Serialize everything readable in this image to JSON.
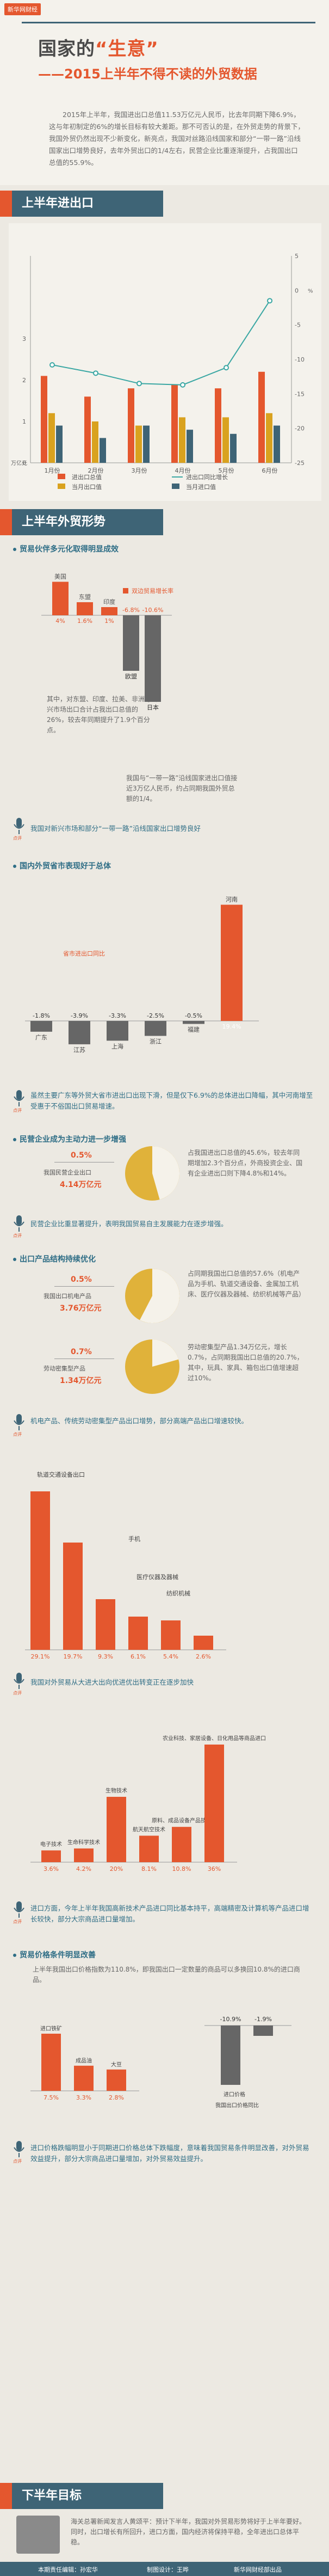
{
  "header": {
    "tag": "新华网财经",
    "title_a": "国家的",
    "title_b": "“生意”",
    "subtitle": "——2015上半年不得不读的外贸数据",
    "intro": "2015年上半年，我国进出口总值11.53万亿元人民币，比去年同期下降6.9%，这与年初制定的6%的增长目标有较大差距。那不可否认的是，在外贸走势的背景下，我国外贸仍然出现不少新变化，新亮点，我国对丝路沿线国家和部分“一带一路”沿线国家出口增势良好，去年外贸出口的1/4左右，民营企业比重逐渐提升，占我国出口总值的55.9%。"
  },
  "colors": {
    "accent": "#e4572e",
    "blue": "#2f6e86",
    "dark": "#3e6476",
    "teal": "#3aa7a3",
    "gray": "#8c8c8c",
    "yellow": "#d9a21f"
  },
  "sections": {
    "s1": "上半年进出口",
    "s2": "上半年外贸形势",
    "s3": "下半年目标"
  },
  "chart_data": [
    {
      "type": "bar",
      "categories": [
        "1月份",
        "2月份",
        "3月份",
        "4月份",
        "5月份",
        "6月份"
      ],
      "series": [
        {
          "name": "进出口总值",
          "values": [
            2.1,
            1.6,
            1.8,
            1.9,
            1.8,
            2.2
          ]
        },
        {
          "name": "当月出口值",
          "values": [
            1.2,
            1.0,
            0.9,
            1.1,
            1.1,
            1.2
          ]
        },
        {
          "name": "当月进口值",
          "values": [
            0.9,
            0.6,
            0.9,
            0.8,
            0.7,
            0.9
          ]
        },
        {
          "name": "进出口同比增长",
          "type": "line",
          "values": [
            -10.8,
            -12,
            -13.5,
            -13.7,
            -11.2,
            -1.5
          ]
        }
      ],
      "yunit": "万亿元",
      "ylim": [
        0,
        5
      ],
      "y2lim": [
        -25,
        5
      ],
      "yticks": [
        "0",
        "1",
        "2",
        "3"
      ],
      "y2ticks": [
        "5",
        "0",
        "-5",
        "-10",
        "-15",
        "-20",
        "-25"
      ]
    },
    {
      "type": "bar",
      "title": "贸易伙伴多元化取得明显成效",
      "legend": "双边贸易增长率",
      "categories": [
        "美国",
        "东盟",
        "印度",
        "",
        "欧盟",
        "日本"
      ],
      "values": [
        4.1,
        1.6,
        1.0,
        -6.8,
        -10.6,
        -10.6
      ],
      "labels": [
        "4%",
        "1.6%",
        "1%",
        "-6.8%",
        "-10.6%",
        ""
      ],
      "series_names": [
        "美国",
        "东盟",
        "印度",
        "",
        "欧盟",
        "日本"
      ]
    },
    {
      "type": "bar",
      "title": "国内外贸省市表现好于总体",
      "legend": "省市进出口同比",
      "categories": [
        "广东",
        "江苏",
        "上海",
        "浙江",
        "福建",
        "河南"
      ],
      "values": [
        -1.8,
        -3.9,
        -3.3,
        -2.5,
        -0.5,
        19.4
      ],
      "labels": [
        "-1.8%",
        "-3.9%",
        "-3.3%",
        "-2.5%",
        "-0.5%",
        "19.4%"
      ]
    },
    {
      "type": "pie",
      "title": "民营企业出口",
      "values": [
        45.6,
        54.4
      ],
      "value_label": "4.14万亿元",
      "slice_label": "0.5%"
    },
    {
      "type": "pie",
      "title": "机电产品出口",
      "values": [
        57.6,
        42.4
      ],
      "value_label": "3.76万亿元",
      "slice_label": "0.5%"
    },
    {
      "type": "pie",
      "title": "劳动密集型产品出口",
      "values": [
        20.7,
        79.3
      ],
      "value_label": "1.34万亿元",
      "slice_label": "0.7%"
    },
    {
      "type": "bar",
      "title": "机电产品、传统劳动密集型产品出口增势",
      "categories": [
        "轨道交通设备出口",
        "",
        "",
        "手机",
        "医疗仪器及器械",
        "纺织机械"
      ],
      "values": [
        29.1,
        19.7,
        9.3,
        6.1,
        5.4,
        2.6
      ],
      "labels": [
        "29.1%",
        "19.7%",
        "9.3%",
        "6.1%",
        "5.4%",
        "2.6%"
      ]
    },
    {
      "type": "bar",
      "title": "我国对外贸易从大进大出向优进优出转变正在逐步加快",
      "categories": [
        "电子技术",
        "生命科学技术",
        "生物技术",
        "航天航空技术",
        "原料、成品设备产品技术",
        "农业科技、家居设备、日化用品等商品进口"
      ],
      "values": [
        3.6,
        4.2,
        20.0,
        8.1,
        10.8,
        36.0
      ],
      "labels": [
        "3.6%",
        "4.2%",
        "20%",
        "8.1%",
        "10.8%",
        "36%"
      ]
    },
    {
      "type": "bar",
      "title": "贸易价格条件明显改善",
      "categories": [
        "进口铁矿",
        "成品油",
        "大豆",
        "进口价格",
        "",
        ""
      ],
      "values": [
        7.5,
        3.3,
        2.8,
        -10.9,
        -1.9,
        0
      ],
      "labels": [
        "7.5%",
        "3.3%",
        "2.8%",
        "-10.9%",
        "-1.9%",
        ""
      ]
    }
  ],
  "s1_legend": [
    "进出口总值",
    "进出口同比增长",
    "当月出口值",
    "当月进口值"
  ],
  "s1_yunit": "万亿元",
  "s1_y2unit": "%",
  "partner": {
    "subtitle": "贸易伙伴多元化取得明显成效",
    "legend": "双边贸易增长率",
    "names": [
      "美国",
      "东盟",
      "印度",
      "欧盟",
      "日本"
    ],
    "values_text": [
      "4%",
      "1.6%",
      "1%",
      "-6.8%",
      "-10.6%"
    ],
    "note1": "其中，对东盟、印度、拉美、非洲等新兴市场出口合计占我出口总值的26%，较去年同期提升了1.9个百分点。",
    "note2": "我国与“一带一路”沿线国家进出口值接近3万亿人民币，约占同期我国外贸总额的1/4。",
    "comment": "我国对新兴市场和部分“一带一路”沿线国家出口增势良好"
  },
  "province": {
    "subtitle": "国内外贸省市表现好于总体",
    "legend": "省市进出口同比",
    "names": [
      "广东",
      "江苏",
      "上海",
      "浙江",
      "福建",
      "河南"
    ],
    "values_text": [
      "-1.8%",
      "-3.9%",
      "-3.3%",
      "-2.5%",
      "-0.5%",
      "19.4%"
    ],
    "comment": "虽然主要广东等外贸大省市进出口出现下滑，但是仅下6.9%的总体进出口降幅，其中河南增至受惠于不俗国出口贸易增速。"
  },
  "private": {
    "subtitle": "民营企业成为主动力进一步增强",
    "pct": "0.5%",
    "label1": "我国民营企业出口",
    "label2": "4.14万亿元",
    "text": "占我国进出口总值的45.6%，较去年同期增加2.3个百分点，外商投资企业、国有企业进出口则下降4.8%和14%。",
    "comment": "民营企业比重显著提升，表明我国贸易自主发展能力在逐步增强。"
  },
  "structure": {
    "subtitle": "出口产品结构持续优化",
    "pct": "0.5%",
    "label1": "我国出口机电产品",
    "label2": "3.76万亿元",
    "text": "占同期我国出口总值的57.6%（机电产品为手机、轨道交通设备、金属加工机床、医疗仪器及器械、纺织机械等产品）",
    "pct2": "0.7%",
    "label3": "劳动密集型产品",
    "label4": "1.34万亿元",
    "text2": "劳动密集型产品1.34万亿元，增长0.7%，占同期我国出口总值的20.7%，其中，玩具、家具、箱包出口值增速超过10%。",
    "comment": "机电产品、传统劳动密集型产品出口增势，部分高端产品出口增速较快。"
  },
  "mech": {
    "names": [
      "轨道交通设备出口",
      "手机",
      "医疗仪器及器械",
      "纺织机械"
    ],
    "values_text": [
      "29.1%",
      "19.7%",
      "9.3%",
      "6.1%",
      "5.4%",
      "2.6%"
    ],
    "comment": "我国对外贸易从大进大出向优进优出转变正在逐步加快"
  },
  "hightech": {
    "names": [
      "电子技术",
      "生命科学技术",
      "生物技术",
      "航天航空技术",
      "原料、成品设备产品技术",
      "农业科技、家居设备、日化用品等商品进口"
    ],
    "values_text": [
      "3.6%",
      "4.2%",
      "20%",
      "8.1%",
      "10.8%",
      "36%"
    ],
    "comment": "进口方面，今年上半年我国高新技术产品进口同比基本持平，高端精密及计算机等产品进口增长较快，部分大宗商品进口量增加。"
  },
  "price": {
    "subtitle": "贸易价格条件明显改善",
    "text": "上半年我国出口价格指数为110.8%，即我国出口一定数量的商品可以多换回10.8%的进口商品。",
    "left_names": [
      "进口铁矿",
      "成品油",
      "大豆"
    ],
    "left_values": [
      "7.5%",
      "3.3%",
      "2.8%"
    ],
    "right_names": [
      "进口价格"
    ],
    "right_values": [
      "-10.9%",
      "-1.9%"
    ],
    "right_caption": "我国出口价格同比",
    "comment": "进口价格跌幅明显小于同期进口价格总体下跌幅度，意味着我国贸易条件明显改善，对外贸易效益提升，部分大宗商品进口量增加，对外贸易效益提升。"
  },
  "target": {
    "text": "海关总署新闻发言人黄颂平：预计下半年，我国对外贸易形势将好于上半年要好。同时，出口增长有所回升，进口方面，国内经济将保持平稳，全年进出口总体平稳。"
  },
  "footer": {
    "left": "本期责任编辑：孙宏华",
    "mid": "制图设计：王晔",
    "right": "新华网财经部出品"
  }
}
